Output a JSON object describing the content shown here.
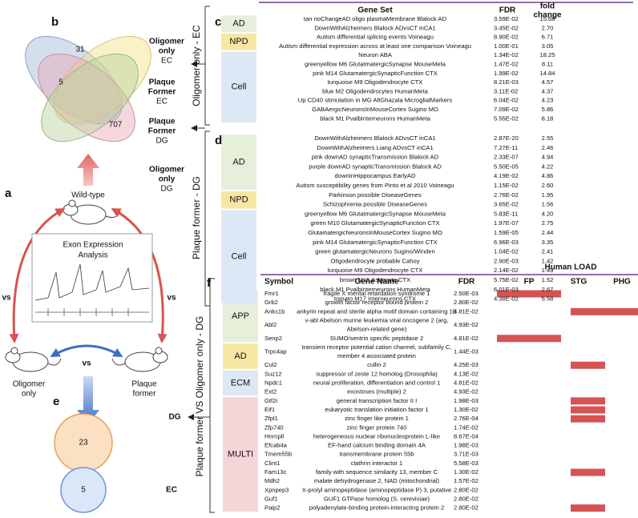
{
  "panel_a": {
    "label": "a",
    "wild_type": "Wild-type",
    "analysis": [
      "Exon Expression",
      "Analysis"
    ],
    "vs": [
      "vs",
      "vs",
      "vs"
    ],
    "oligomer": [
      "Oligomer",
      "only"
    ],
    "plaque": [
      "Plaque",
      "former"
    ]
  },
  "panel_b": {
    "label": "b",
    "counts": [
      "31",
      "5",
      "707"
    ],
    "sets": [
      [
        "Oligomer",
        "only",
        "EC"
      ],
      [
        "Plaque",
        "Former",
        "EC"
      ],
      [
        "Plaque",
        "Former",
        "DG"
      ],
      [
        "Oligomer",
        "only",
        "DG"
      ]
    ]
  },
  "panel_c": {
    "label": "c",
    "side_label": "Oligomer only - EC",
    "columns": [
      "Gene Set",
      "FDR",
      [
        "fold",
        "change"
      ]
    ],
    "groups": [
      {
        "name": "AD",
        "color": "#e6efd9",
        "rows": [
          [
            "tan noChangeAD oligo plasmaMembrane Blalock AD",
            "3.59E-02",
            "15.68"
          ],
          [
            "DownWithAlzheimers Blalock ADvsCT inCA1",
            "3.45E-02",
            "2.70"
          ]
        ]
      },
      {
        "name": "NPD",
        "color": "#f8e6a3",
        "rows": [
          [
            "Autism differential splicing events Voineagu",
            "8.90E-02",
            "6.71"
          ],
          [
            "Autism differential expression across at least one comparison Voineagu",
            "1.00E-01",
            "3.05"
          ]
        ]
      },
      {
        "name": "Cell",
        "color": "#dce8f6",
        "rows": [
          [
            "Neuron ABA",
            "1.34E-02",
            "18.25"
          ],
          [
            "greenyellow M6 GlutatmatergicSynapse MouseMeta",
            "1.47E-02",
            "8.11"
          ],
          [
            "pink M14 GlutamatergicSynapticFunction CTX",
            "1.99E-02",
            "14.84"
          ],
          [
            "turquoise M9 Oligodendrocyte CTX",
            "8.21E-03",
            "4.57"
          ],
          [
            "blue M2 Oligodendrocytes HumanMeta",
            "3.11E-02",
            "4.37"
          ],
          [
            "Up CD40 stimulation in MG AltGhazala MicroglialMarkers",
            "6.04E-02",
            "4.23"
          ],
          [
            "GABAergicNeuronsInMouseCortex Sugino MO",
            "7.09E-02",
            "5.86"
          ],
          [
            "black M1 PvalbInterneurons HumanMeta",
            "5.55E-02",
            "8.18"
          ]
        ]
      }
    ]
  },
  "panel_d": {
    "label": "d",
    "side_label": "Plaque former - DG",
    "groups": [
      {
        "name": "AD",
        "color": "#e6efd9",
        "rows": [
          [
            "DownWithAlzheimers Blalock ADvsCT inCA1",
            "2.87E-20",
            "2.55"
          ],
          [
            "DownWithAlzheimers Liang ADvsCT inCA1",
            "7.27E-11",
            "2.46"
          ],
          [
            "pink downAD synapticTransmission Blalock AD",
            "2.33E-07",
            "4.94"
          ],
          [
            "purple downAD synapticTransmission Blalock AD",
            "5.50E-05",
            "4.22"
          ],
          [
            "downInHippocampus EarlyAD",
            "4.19E-02",
            "4.86"
          ],
          [
            "Autism susceptibility genes from Pinto et al 2010 Voineagu",
            "1.15E-02",
            "2.60"
          ]
        ]
      },
      {
        "name": "NPD",
        "color": "#f8e6a3",
        "rows": [
          [
            "Parkinson possible DiseaseGenes",
            "2.76E-02",
            "1.95"
          ],
          [
            "Schizophrenia possible DiseaseGenes",
            "3.65E-02",
            "1.56"
          ]
        ]
      },
      {
        "name": "Cell",
        "color": "#dce8f6",
        "rows": [
          [
            "greenyellow M6 GlutatmatergicSynapse MouseMeta",
            "5.83E-11",
            "4.20"
          ],
          [
            "green M10 GlutamatergicSynapticFunction CTX",
            "1.97E-07",
            "2.75"
          ],
          [
            "GlutamatergicNeuronsInMouseCortex Sugino MO",
            "1.59E-05",
            "2.44"
          ],
          [
            "pink M14 GlutamatergicSynapticFunction CTX",
            "6.96E-03",
            "3.35"
          ],
          [
            "green glutamatergicNeurons Sugino/Winden",
            "1.04E-02",
            "2.41"
          ],
          [
            "Oligodendrocyte probable Cahoy",
            "2.90E-03",
            "1.42"
          ],
          [
            "turquoise M9 Oligodendrocyte CTX",
            "2.14E-02",
            "1.49"
          ],
          [
            "brown M15 Astrocyte CTX",
            "5.75E-02",
            "1.52"
          ],
          [
            "black M1 PvalbInterneurons HumanMeta",
            "6.01E-03",
            "2.67"
          ],
          [
            "tomato M17 Interneurons CTX",
            "4.38E-02",
            "5.58"
          ]
        ]
      }
    ]
  },
  "panel_e": {
    "label": "e",
    "circles": [
      {
        "count": "23",
        "name": "DG"
      },
      {
        "count": "5",
        "name": "EC"
      }
    ]
  },
  "panel_f": {
    "label": "f",
    "side_label": "Plaque former VS Oligomer only - DG",
    "load_title": "Human LOAD",
    "columns": [
      "Symbol",
      "Gene Name",
      "FDR"
    ],
    "load_columns": [
      "FP",
      "STG",
      "PHG"
    ],
    "groups": [
      {
        "name": "APP",
        "color": "#e6efd9",
        "rows": [
          {
            "symbol": "Fmr1",
            "name": "fragile X mental retardation syndrome 1",
            "fdr": "2.50E-03",
            "load": [
              "FP"
            ]
          },
          {
            "symbol": "Grb2",
            "name": "growth factor receptor bound protein 2",
            "fdr": "2.80E-02"
          },
          {
            "symbol": "Anks1b",
            "name": "ankyrin repeat and sterile alpha motif domain containing 1B",
            "fdr": "4.81E-02",
            "load": [
              "STG",
              "PHG"
            ]
          },
          {
            "symbol": "Abl2",
            "name": [
              "v-abl Abelson murine leukemia viral oncogene 2 (arg,",
              "Abelson-related gene)"
            ],
            "fdr": "4.93E-02"
          },
          {
            "symbol": "Senp2",
            "name": "SUMO/sentrin specific peptidase 2",
            "fdr": "4.81E-02",
            "load": [
              "FP"
            ]
          }
        ]
      },
      {
        "name": "AD",
        "color": "#f8e6a3",
        "rows": [
          {
            "symbol": "Trpc4ap",
            "name": [
              "transient receptor potential cation channel, subfamily C,",
              "member 4 associated protein"
            ],
            "fdr": "1.44E-03"
          },
          {
            "symbol": "Cul2",
            "name": "cullin 2",
            "fdr": "4.25E-03",
            "load": [
              "STG"
            ]
          }
        ]
      },
      {
        "name": "ECM",
        "color": "#dce8f6",
        "rows": [
          {
            "symbol": "Suz12",
            "name": "suppressor of zeste 12 homolog (Drosophila)",
            "fdr": "4.13E-02"
          },
          {
            "symbol": "Npdc1",
            "name": "neural proliferation, differentiation and control 1",
            "fdr": "4.81E-02"
          },
          {
            "symbol": "Ext2",
            "name": "exostoses (multiple) 2",
            "fdr": "4.93E-02"
          }
        ]
      },
      {
        "name": "MULTI",
        "color": "#f6d5d8",
        "rows": [
          {
            "symbol": "Gtf2i",
            "name": "general transcription factor II I",
            "fdr": "1.98E-03",
            "load": [
              "STG"
            ]
          },
          {
            "symbol": "Eif1",
            "name": "eukaryotic translation initiation factor 1",
            "fdr": "1.30E-02",
            "load": [
              "STG"
            ]
          },
          {
            "symbol": "Zfpl1",
            "name": "zinc finger like protein 1",
            "fdr": "2.76E-04",
            "load": [
              "STG"
            ]
          },
          {
            "symbol": "Zfp740",
            "name": "zinc finger protein 740",
            "fdr": "1.74E-02"
          },
          {
            "symbol": "Hnrnpll",
            "name": "heterogeneous nuclear ribonucleoprotein L-like",
            "fdr": "8.67E-04"
          },
          {
            "symbol": "Efcab4a",
            "name": "EF-hand calcium binding domain 4A",
            "fdr": "1.98E-03"
          },
          {
            "symbol": "Tmem55b",
            "name": "transmembrane protein 55b",
            "fdr": "3.71E-03"
          },
          {
            "symbol": "Clint1",
            "name": "clathrin interactor 1",
            "fdr": "5.58E-03"
          },
          {
            "symbol": "Fam13c",
            "name": "family with sequence similarity 13, member C",
            "fdr": "1.30E-02",
            "load": [
              "STG"
            ]
          },
          {
            "symbol": "Mdh2",
            "name": "malate dehydrogenase 2, NAD (mitochondrial)",
            "fdr": "1.57E-02"
          },
          {
            "symbol": "Xpnpep3",
            "name": "X-prolyl aminopeptidase (aminopeptidase P) 3, putative",
            "fdr": "2.80E-02"
          },
          {
            "symbol": "Guf1",
            "name": "GUF1 GTPase homolog (S. cerevisiae)",
            "fdr": "2.80E-02"
          },
          {
            "symbol": "Paip2",
            "name": "polyadenylate-binding protein-interacting protein 2",
            "fdr": "2.80E-02",
            "load": [
              "STG"
            ]
          }
        ]
      }
    ]
  }
}
